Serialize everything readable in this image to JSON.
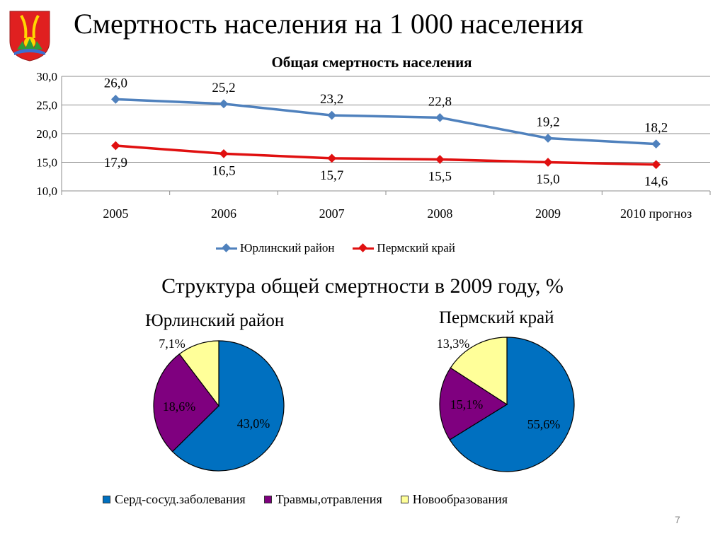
{
  "slide": {
    "title": "Смертность населения на 1 000 населения",
    "page_number": "7"
  },
  "colors": {
    "yurla": "#4F81BD",
    "perm": "#E01010",
    "cardio": "#0070C0",
    "trauma": "#7F007F",
    "neoplasm": "#FFFF99"
  },
  "logo": {
    "icon": "coat-of-arms-icon"
  },
  "chart_data": [
    {
      "type": "line",
      "title": "Общая смертность населения",
      "categories": [
        "2005",
        "2006",
        "2007",
        "2008",
        "2009",
        "2010 прогноз"
      ],
      "y_tick_labels": [
        "30,0",
        "25,0",
        "20,0",
        "15,0",
        "10,0"
      ],
      "ylim": [
        10,
        30
      ],
      "grid": true,
      "legend": "bottom",
      "series": [
        {
          "name": "Юрлинский район",
          "values": [
            26.0,
            25.2,
            23.2,
            22.8,
            19.2,
            18.2
          ],
          "labels": [
            "26,0",
            "25,2",
            "23,2",
            "22,8",
            "19,2",
            "18,2"
          ]
        },
        {
          "name": "Пермский край",
          "values": [
            17.9,
            16.5,
            15.7,
            15.5,
            15.0,
            14.6
          ],
          "labels": [
            "17,9",
            "16,5",
            "15,7",
            "15,5",
            "15,0",
            "14,6"
          ]
        }
      ]
    },
    {
      "type": "pie",
      "title": "Юрлинский район",
      "categories": [
        "Серд-сосуд.заболевания",
        "Травмы,отравления",
        "Новообразования"
      ],
      "values": [
        43.0,
        18.6,
        7.1
      ],
      "labels": [
        "43,0%",
        "18,6%",
        "7,1%"
      ]
    },
    {
      "type": "pie",
      "title": "Пермский край",
      "categories": [
        "Серд-сосуд.заболевания",
        "Травмы,отравления",
        "Новообразования"
      ],
      "values": [
        55.6,
        15.1,
        13.3
      ],
      "labels": [
        "55,6%",
        "15,1%",
        "13,3%"
      ]
    }
  ],
  "pies_title": "Структура общей смертности в 2009 году, %",
  "pie_legend": [
    "Серд-сосуд.заболевания",
    "Травмы,отравления",
    "Новообразования"
  ]
}
